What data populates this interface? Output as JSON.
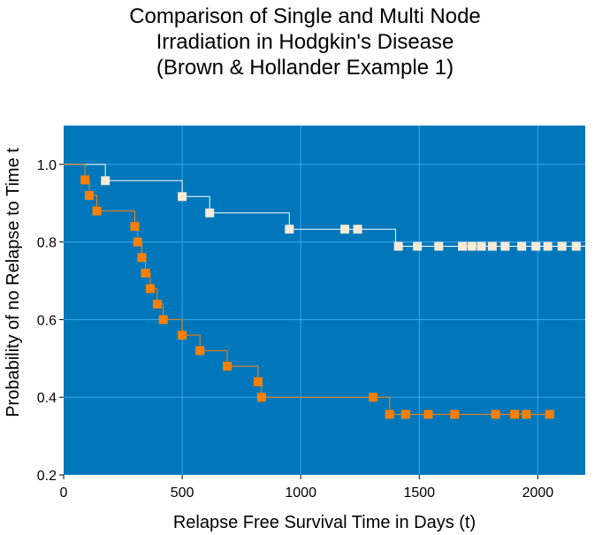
{
  "chart_data": {
    "type": "line",
    "title": [
      "Comparison of Single and Multi Node",
      "Irradiation in Hodgkin's Disease",
      "(Brown & Hollander Example 1)"
    ],
    "xlabel": "Relapse Free Survival Time in Days (t)",
    "ylabel": "Probability of no Relapse to Time t",
    "xlim": [
      0,
      2200
    ],
    "ylim": [
      0.2,
      1.1
    ],
    "xticks": [
      0,
      500,
      1000,
      1500,
      2000
    ],
    "yticks": [
      0.2,
      0.4,
      0.6,
      0.8,
      1.0
    ],
    "ytick_labels": [
      "0.2",
      "0.4",
      "0.6",
      "0.8",
      "1.0"
    ],
    "grid": true,
    "background": "#0077bb",
    "grid_color": "#3ba7ee",
    "series": [
      {
        "color": "#f7ead6",
        "line_color": "#ffffff",
        "step": [
          [
            0,
            1.0
          ],
          [
            176,
            1.0
          ],
          [
            176,
            0.958
          ],
          [
            500,
            0.958
          ],
          [
            500,
            0.917
          ],
          [
            616,
            0.917
          ],
          [
            616,
            0.875
          ],
          [
            952,
            0.875
          ],
          [
            952,
            0.833
          ],
          [
            1400,
            0.833
          ],
          [
            1400,
            0.789
          ],
          [
            2200,
            0.789
          ]
        ],
        "points": [
          [
            176,
            0.958
          ],
          [
            500,
            0.917
          ],
          [
            616,
            0.875
          ],
          [
            952,
            0.833
          ],
          [
            1186,
            0.833
          ],
          [
            1240,
            0.833
          ],
          [
            1412,
            0.789
          ],
          [
            1492,
            0.789
          ],
          [
            1582,
            0.789
          ],
          [
            1682,
            0.789
          ],
          [
            1722,
            0.789
          ],
          [
            1762,
            0.789
          ],
          [
            1808,
            0.789
          ],
          [
            1862,
            0.789
          ],
          [
            1932,
            0.789
          ],
          [
            1992,
            0.789
          ],
          [
            2042,
            0.789
          ],
          [
            2102,
            0.789
          ],
          [
            2162,
            0.789
          ]
        ]
      },
      {
        "color": "#ff8000",
        "line_color": "#ff8000",
        "step": [
          [
            0,
            1.0
          ],
          [
            90,
            1.0
          ],
          [
            90,
            0.96
          ],
          [
            108,
            0.96
          ],
          [
            108,
            0.92
          ],
          [
            140,
            0.92
          ],
          [
            140,
            0.88
          ],
          [
            300,
            0.88
          ],
          [
            300,
            0.84
          ],
          [
            312,
            0.84
          ],
          [
            312,
            0.8
          ],
          [
            330,
            0.8
          ],
          [
            330,
            0.76
          ],
          [
            345,
            0.76
          ],
          [
            345,
            0.72
          ],
          [
            365,
            0.72
          ],
          [
            365,
            0.68
          ],
          [
            395,
            0.68
          ],
          [
            395,
            0.64
          ],
          [
            420,
            0.64
          ],
          [
            420,
            0.6
          ],
          [
            500,
            0.6
          ],
          [
            500,
            0.56
          ],
          [
            575,
            0.56
          ],
          [
            575,
            0.52
          ],
          [
            690,
            0.52
          ],
          [
            690,
            0.48
          ],
          [
            820,
            0.48
          ],
          [
            820,
            0.44
          ],
          [
            835,
            0.44
          ],
          [
            835,
            0.4
          ],
          [
            1375,
            0.4
          ],
          [
            1375,
            0.356
          ],
          [
            2050,
            0.356
          ]
        ],
        "points": [
          [
            90,
            0.96
          ],
          [
            108,
            0.92
          ],
          [
            140,
            0.88
          ],
          [
            300,
            0.84
          ],
          [
            312,
            0.8
          ],
          [
            330,
            0.76
          ],
          [
            345,
            0.72
          ],
          [
            365,
            0.68
          ],
          [
            395,
            0.64
          ],
          [
            420,
            0.6
          ],
          [
            500,
            0.56
          ],
          [
            575,
            0.52
          ],
          [
            690,
            0.48
          ],
          [
            820,
            0.44
          ],
          [
            835,
            0.4
          ],
          [
            1306,
            0.4
          ],
          [
            1375,
            0.356
          ],
          [
            1443,
            0.356
          ],
          [
            1538,
            0.356
          ],
          [
            1649,
            0.356
          ],
          [
            1822,
            0.356
          ],
          [
            1902,
            0.356
          ],
          [
            1952,
            0.356
          ],
          [
            2050,
            0.356
          ]
        ]
      }
    ]
  }
}
